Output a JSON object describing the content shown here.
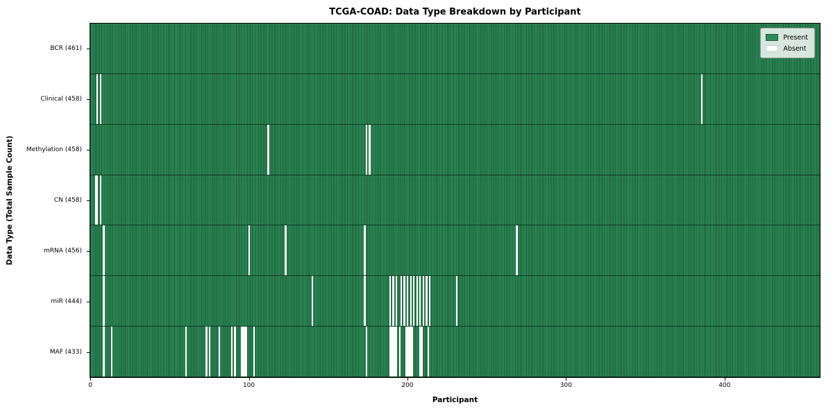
{
  "title": "TCGA-COAD: Data Type Breakdown by Participant",
  "axes": {
    "xlabel": "Participant",
    "ylabel": "Data Type (Total Sample Count)"
  },
  "legend": {
    "present_label": "Present",
    "absent_label": "Absent"
  },
  "colors": {
    "present": "#2e8b57",
    "cell_edge": "#1b5c3a",
    "absent": "#ffffff",
    "legend_bg": "rgba(255,255,255,0.82)"
  },
  "chart_data": {
    "type": "heatmap",
    "title": "TCGA-COAD: Data Type Breakdown by Participant",
    "xlabel": "Participant",
    "ylabel": "Data Type (Total Sample Count)",
    "legend": [
      "Present",
      "Absent"
    ],
    "legend_position": "upper right",
    "x_range": [
      0,
      461
    ],
    "xticks": [
      0,
      100,
      200,
      300,
      400
    ],
    "total_participants": 461,
    "rows": [
      {
        "label": "BCR (461)",
        "name": "BCR",
        "present_count": 461,
        "absent_participants": []
      },
      {
        "label": "Clinical (458)",
        "name": "Clinical",
        "present_count": 458,
        "absent_participants": [
          4,
          6,
          386
        ]
      },
      {
        "label": "Methylation (458)",
        "name": "Methylation",
        "present_count": 458,
        "absent_participants": [
          112,
          174,
          176
        ]
      },
      {
        "label": "CN (458)",
        "name": "CN",
        "present_count": 458,
        "absent_participants": [
          3,
          4,
          6
        ]
      },
      {
        "label": "mRNA (456)",
        "name": "mRNA",
        "present_count": 456,
        "absent_participants": [
          8,
          100,
          123,
          173,
          269
        ]
      },
      {
        "label": "miR (444)",
        "name": "miR",
        "present_count": 444,
        "absent_participants": [
          8,
          140,
          173,
          189,
          191,
          193,
          196,
          198,
          200,
          202,
          204,
          206,
          208,
          210,
          212,
          214,
          231
        ]
      },
      {
        "label": "MAF (433)",
        "name": "MAF",
        "present_count": 433,
        "absent_participants": [
          8,
          13,
          60,
          73,
          75,
          81,
          89,
          91,
          95,
          96,
          97,
          98,
          103,
          174,
          189,
          190,
          191,
          192,
          193,
          195,
          199,
          200,
          201,
          202,
          203,
          208,
          209,
          213
        ]
      }
    ]
  }
}
